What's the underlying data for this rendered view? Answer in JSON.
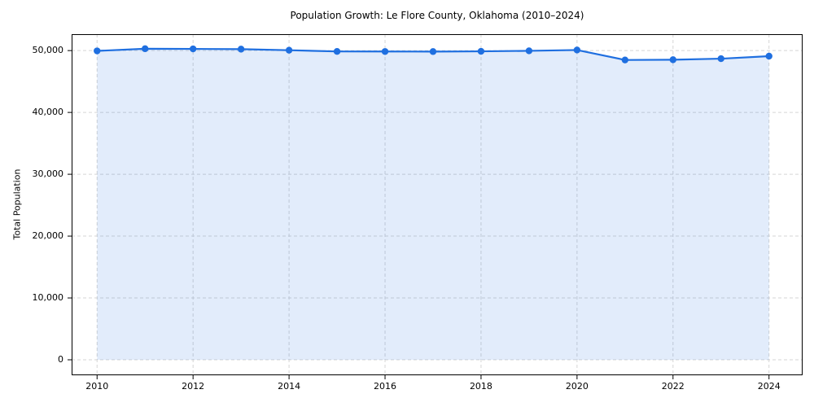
{
  "figure": {
    "title": "Population Growth: Le Flore County, Oklahoma (2010–2024)",
    "y_axis_label": "Total Population"
  },
  "chart_data": {
    "type": "line",
    "title": "Population Growth: Le Flore County, Oklahoma (2010–2024)",
    "xlabel": "",
    "ylabel": "Total Population",
    "x": [
      2010,
      2011,
      2012,
      2013,
      2014,
      2015,
      2016,
      2017,
      2018,
      2019,
      2020,
      2021,
      2022,
      2023,
      2024
    ],
    "series": [
      {
        "name": "Total Population",
        "values": [
          49950,
          50300,
          50270,
          50230,
          50060,
          49860,
          49850,
          49840,
          49880,
          49960,
          50090,
          48480,
          48520,
          48690,
          49100
        ]
      }
    ],
    "xlim": [
      2009.47,
      2024.7
    ],
    "ylim": [
      -2500,
      52650
    ],
    "x_ticks": [
      2010,
      2012,
      2014,
      2016,
      2018,
      2020,
      2022,
      2024
    ],
    "x_tick_labels": [
      "2010",
      "2012",
      "2014",
      "2016",
      "2018",
      "2020",
      "2022",
      "2024"
    ],
    "y_ticks": [
      0,
      10000,
      20000,
      30000,
      40000,
      50000
    ],
    "y_tick_labels": [
      "0",
      "10,000",
      "20,000",
      "30,000",
      "40,000",
      "50,000"
    ],
    "grid": true,
    "grid_style": "dashed",
    "legend_position": "none",
    "marker": "circle",
    "area_fill": true
  },
  "colors": {
    "line": "#1f6fe0",
    "marker": "#1f6fe0",
    "area_fill": "rgba(31, 111, 224, 0.13)",
    "grid": "#d5d5d5",
    "spine": "#000000",
    "text": "#000000",
    "background": "#ffffff"
  }
}
